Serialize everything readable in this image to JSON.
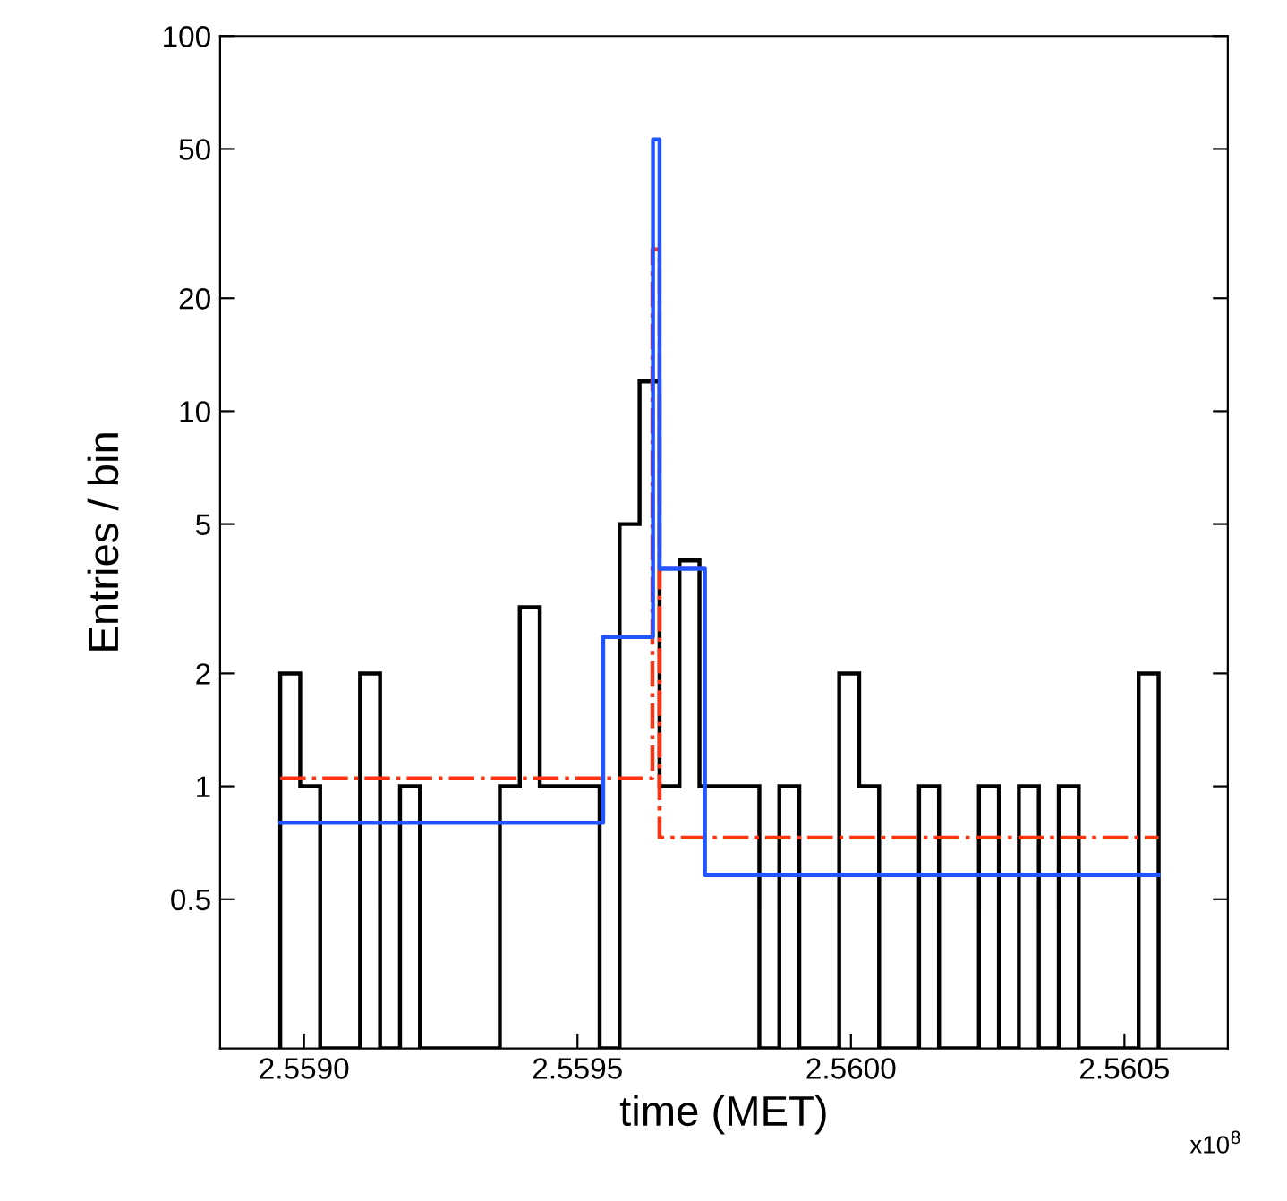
{
  "chart_data": {
    "type": "histogram",
    "xlabel": "time (MET)",
    "ylabel": "Entries / bin",
    "log": "y",
    "grid": false,
    "legend": false,
    "xlim": [
      2.5588465,
      2.560689
    ],
    "ylim": [
      0.2,
      100
    ],
    "xticks": [
      {
        "value": 2.559,
        "label": "2.5590"
      },
      {
        "value": 2.5595,
        "label": "2.5595"
      },
      {
        "value": 2.56,
        "label": "2.5600"
      },
      {
        "value": 2.5605,
        "label": "2.5605"
      }
    ],
    "yticks": [
      0.5,
      1,
      2,
      5,
      10,
      20,
      50,
      100
    ],
    "annotations": [
      "x10$^{8}$"
    ],
    "series": [
      {
        "type": "histogram",
        "color": "#000000",
        "bins": [
          2.5589565,
          2.558993,
          2.5590295,
          2.559066,
          2.5591025,
          2.559139,
          2.5591755,
          2.559212,
          2.5592485,
          2.559285,
          2.5593215,
          2.559358,
          2.5593945,
          2.559431,
          2.5594675,
          2.559504,
          2.5595405,
          2.559577,
          2.5596135,
          2.55965,
          2.5596865,
          2.559723,
          2.5597595,
          2.559796,
          2.5598325,
          2.559869,
          2.5599055,
          2.559942,
          2.5599785,
          2.560015,
          2.5600515,
          2.560088,
          2.5601245,
          2.560161,
          2.5601975,
          2.560234,
          2.5602705,
          2.560307,
          2.5603435,
          2.56038,
          2.5604165,
          2.560453,
          2.5604895,
          2.560526,
          2.5605625
        ],
        "values": [
          2,
          1,
          null,
          null,
          2,
          null,
          1,
          null,
          null,
          null,
          null,
          1,
          3,
          1,
          1,
          1,
          null,
          5,
          12,
          1,
          4,
          1,
          1,
          1,
          null,
          1,
          null,
          null,
          2,
          1,
          null,
          null,
          1,
          null,
          null,
          1,
          null,
          1,
          null,
          1,
          null,
          null,
          null,
          2
        ]
      },
      {
        "type": "step",
        "color": "#ff3311",
        "line_style": "dashdot",
        "x": [
          2.5589565,
          2.559637,
          2.55965,
          2.5605625
        ],
        "values": [
          1.05,
          27,
          0.73,
          0.73
        ]
      },
      {
        "type": "step",
        "color": "#2255ff",
        "line_style": "solid",
        "x": [
          2.5589565,
          2.559547,
          2.559638,
          2.55965,
          2.559733,
          2.5605625
        ],
        "values": [
          0.8,
          2.5,
          53,
          3.8,
          0.58,
          0.58
        ]
      }
    ]
  }
}
